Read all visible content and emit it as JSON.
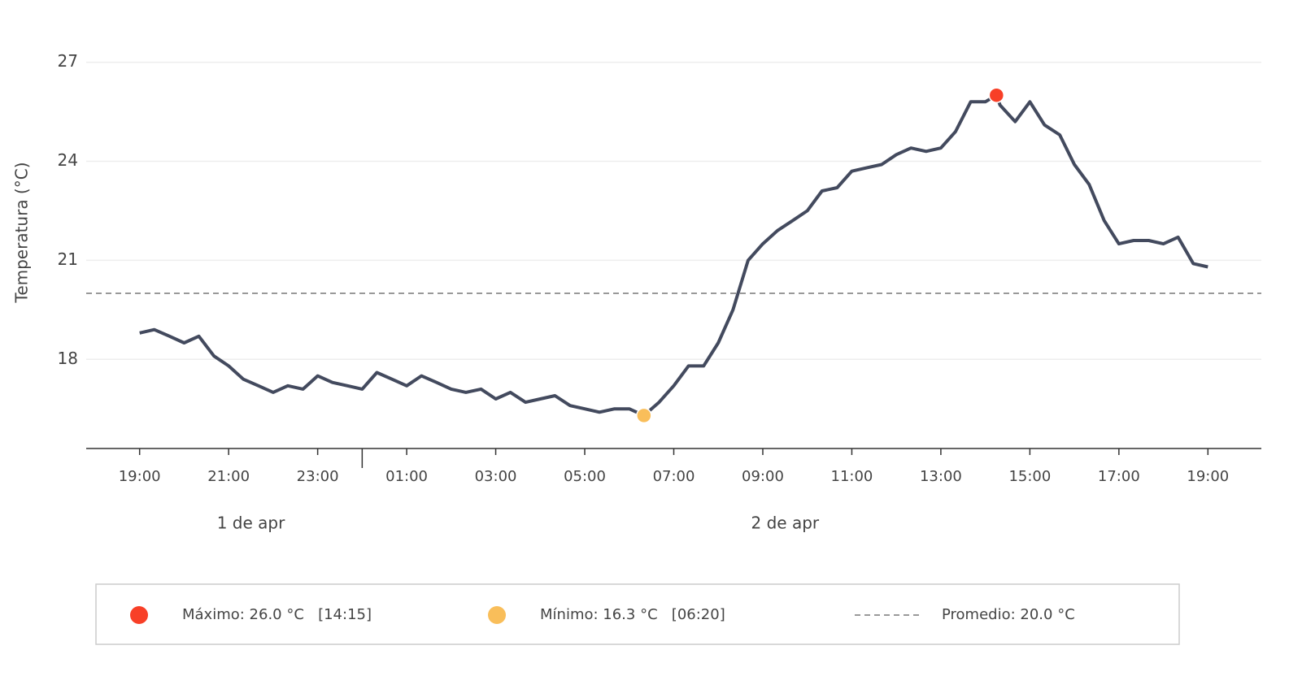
{
  "chart_data": {
    "type": "line",
    "y_label": "Temperatura (°C)",
    "x": [
      19,
      19.33,
      19.67,
      20,
      20.33,
      20.67,
      21,
      21.33,
      21.67,
      22,
      22.33,
      22.67,
      23,
      23.33,
      23.67,
      24,
      24.33,
      24.67,
      25,
      25.33,
      25.67,
      26,
      26.33,
      26.67,
      27,
      27.33,
      27.67,
      28,
      28.33,
      28.67,
      29,
      29.33,
      29.67,
      30,
      30.33,
      30.67,
      31,
      31.33,
      31.67,
      32,
      32.33,
      32.67,
      33,
      33.33,
      33.67,
      34,
      34.33,
      34.67,
      35,
      35.33,
      35.67,
      36,
      36.33,
      36.67,
      37,
      37.33,
      37.67,
      38,
      38.25,
      38.33,
      38.67,
      39,
      39.33,
      39.67,
      40,
      40.33,
      40.67,
      41,
      41.33,
      41.67,
      42,
      42.33,
      42.67,
      43
    ],
    "values": [
      18.8,
      18.9,
      18.7,
      18.5,
      18.7,
      18.1,
      17.8,
      17.4,
      17.2,
      17.0,
      17.2,
      17.1,
      17.5,
      17.3,
      17.2,
      17.1,
      17.6,
      17.4,
      17.2,
      17.5,
      17.3,
      17.1,
      17.0,
      17.1,
      16.8,
      17.0,
      16.7,
      16.8,
      16.9,
      16.6,
      16.5,
      16.4,
      16.5,
      16.5,
      16.3,
      16.7,
      17.2,
      17.8,
      17.8,
      18.5,
      19.5,
      21.0,
      21.5,
      21.9,
      22.2,
      22.5,
      23.1,
      23.2,
      23.7,
      23.8,
      23.9,
      24.2,
      24.4,
      24.3,
      24.4,
      24.9,
      25.8,
      25.8,
      26.0,
      25.7,
      25.2,
      25.8,
      25.1,
      24.8,
      23.9,
      23.3,
      22.2,
      21.5,
      21.6,
      21.6,
      21.5,
      21.7,
      20.9,
      20.8
    ],
    "color": "#434a5e",
    "xlim": [
      17.8,
      44.2
    ],
    "xticks": [
      {
        "value": 19,
        "label": "19:00"
      },
      {
        "value": 21,
        "label": "21:00"
      },
      {
        "value": 23,
        "label": "23:00"
      },
      {
        "value": 25,
        "label": "01:00"
      },
      {
        "value": 27,
        "label": "03:00"
      },
      {
        "value": 29,
        "label": "05:00"
      },
      {
        "value": 31,
        "label": "07:00"
      },
      {
        "value": 33,
        "label": "09:00"
      },
      {
        "value": 35,
        "label": "11:00"
      },
      {
        "value": 37,
        "label": "13:00"
      },
      {
        "value": 39,
        "label": "15:00"
      },
      {
        "value": 41,
        "label": "17:00"
      },
      {
        "value": 43,
        "label": "19:00"
      }
    ],
    "day_break": 24,
    "days": [
      "1 de apr",
      "2 de apr"
    ],
    "ylim": [
      15.3,
      27.9
    ],
    "yticks": [
      18,
      21,
      24,
      27
    ],
    "grid": true,
    "max": {
      "x": 38.25,
      "value": 26.0,
      "label": "Máximo: 26.0 °C   [14:15]",
      "color": "#f83f27"
    },
    "min": {
      "x": 30.33,
      "value": 16.3,
      "label": "Mínimo: 16.3 °C   [06:20]",
      "color": "#f9be5a"
    },
    "mean": {
      "value": 20.0,
      "label": "Promedio: 20.0 °C",
      "color": "#999999"
    }
  }
}
